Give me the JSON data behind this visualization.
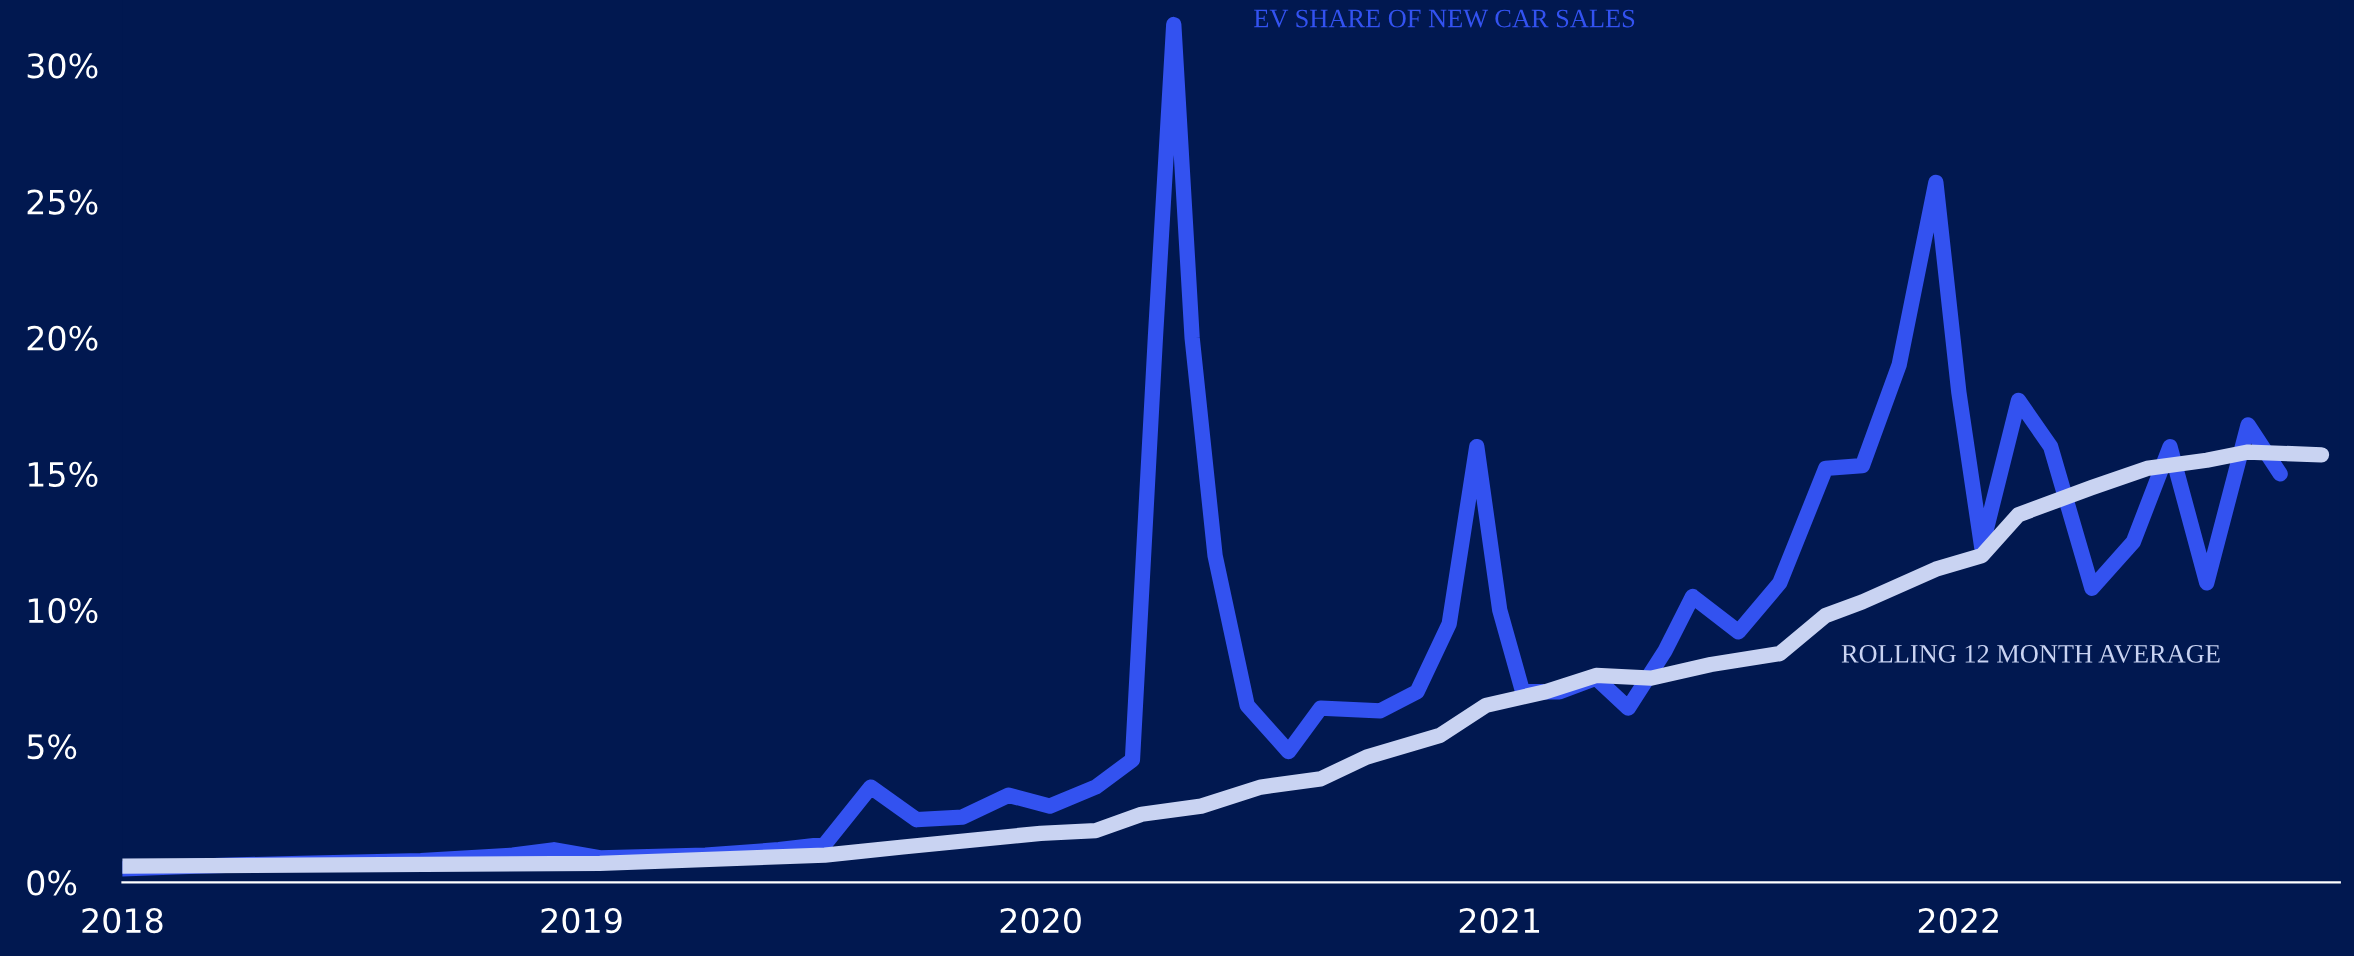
{
  "chart_data": {
    "type": "line",
    "x": [
      2018.0,
      2018.16,
      2018.39,
      2018.65,
      2018.85,
      2018.94,
      2019.04,
      2019.27,
      2019.43,
      2019.53,
      2019.63,
      2019.73,
      2019.83,
      2019.93,
      2020.02,
      2020.12,
      2020.2,
      2020.25,
      2020.29,
      2020.33,
      2020.38,
      2020.45,
      2020.54,
      2020.61,
      2020.74,
      2020.82,
      2020.89,
      2020.95,
      2021.0,
      2021.05,
      2021.13,
      2021.21,
      2021.28,
      2021.36,
      2021.42,
      2021.52,
      2021.61,
      2021.71,
      2021.79,
      2021.87,
      2021.95,
      2022.0,
      2022.05,
      2022.13,
      2022.2,
      2022.29,
      2022.38,
      2022.46,
      2022.54,
      2022.63,
      2022.7
    ],
    "series": [
      {
        "name": "EV SHARE OF NEW CAR SALES",
        "color": "#3352f0",
        "values": [
          0.5,
          0.6,
          0.7,
          0.8,
          1.0,
          1.2,
          0.9,
          1.0,
          1.2,
          1.4,
          3.5,
          2.3,
          2.4,
          3.2,
          2.8,
          3.5,
          4.5,
          20,
          31.5,
          20,
          12,
          6.5,
          4.8,
          6.4,
          6.3,
          7,
          9.5,
          16.0,
          10,
          7,
          7.0,
          7.5,
          6.4,
          8.5,
          10.5,
          9.2,
          11,
          15.2,
          15.3,
          19,
          25.7,
          18,
          12.3,
          17.7,
          16,
          10.8,
          12.5,
          16,
          11,
          16.8,
          15
        ]
      },
      {
        "name": "ROLLING 12 MONTH AVERAGE",
        "color": "#c9d3f2",
        "x": [
          2018.0,
          2019.04,
          2019.53,
          2019.7,
          2020.0,
          2020.12,
          2020.22,
          2020.35,
          2020.48,
          2020.61,
          2020.71,
          2020.87,
          2020.97,
          2021.1,
          2021.21,
          2021.33,
          2021.46,
          2021.61,
          2021.71,
          2021.79,
          2021.95,
          2022.05,
          2022.13,
          2022.29,
          2022.41,
          2022.54,
          2022.63,
          2022.79
        ],
        "values": [
          0.6,
          0.7,
          1.0,
          1.3,
          1.8,
          1.9,
          2.5,
          2.8,
          3.5,
          3.8,
          4.6,
          5.4,
          6.5,
          7.0,
          7.6,
          7.5,
          8.0,
          8.4,
          9.8,
          10.3,
          11.5,
          12.0,
          13.5,
          14.5,
          15.2,
          15.5,
          15.8,
          15.7
        ]
      }
    ],
    "xlim": [
      2018.0,
      2022.83
    ],
    "xticks": [
      2018,
      2019,
      2020,
      2021,
      2022
    ],
    "ylim": [
      0,
      32.4
    ],
    "yticks": [
      {
        "value": 0,
        "label": "0%"
      },
      {
        "value": 5,
        "label": "5%"
      },
      {
        "value": 10,
        "label": "10%"
      },
      {
        "value": 15,
        "label": "15%"
      },
      {
        "value": 20,
        "label": "20%"
      },
      {
        "value": 25,
        "label": "25%"
      },
      {
        "value": 30,
        "label": "30%"
      }
    ],
    "grid": false,
    "legend": false
  }
}
